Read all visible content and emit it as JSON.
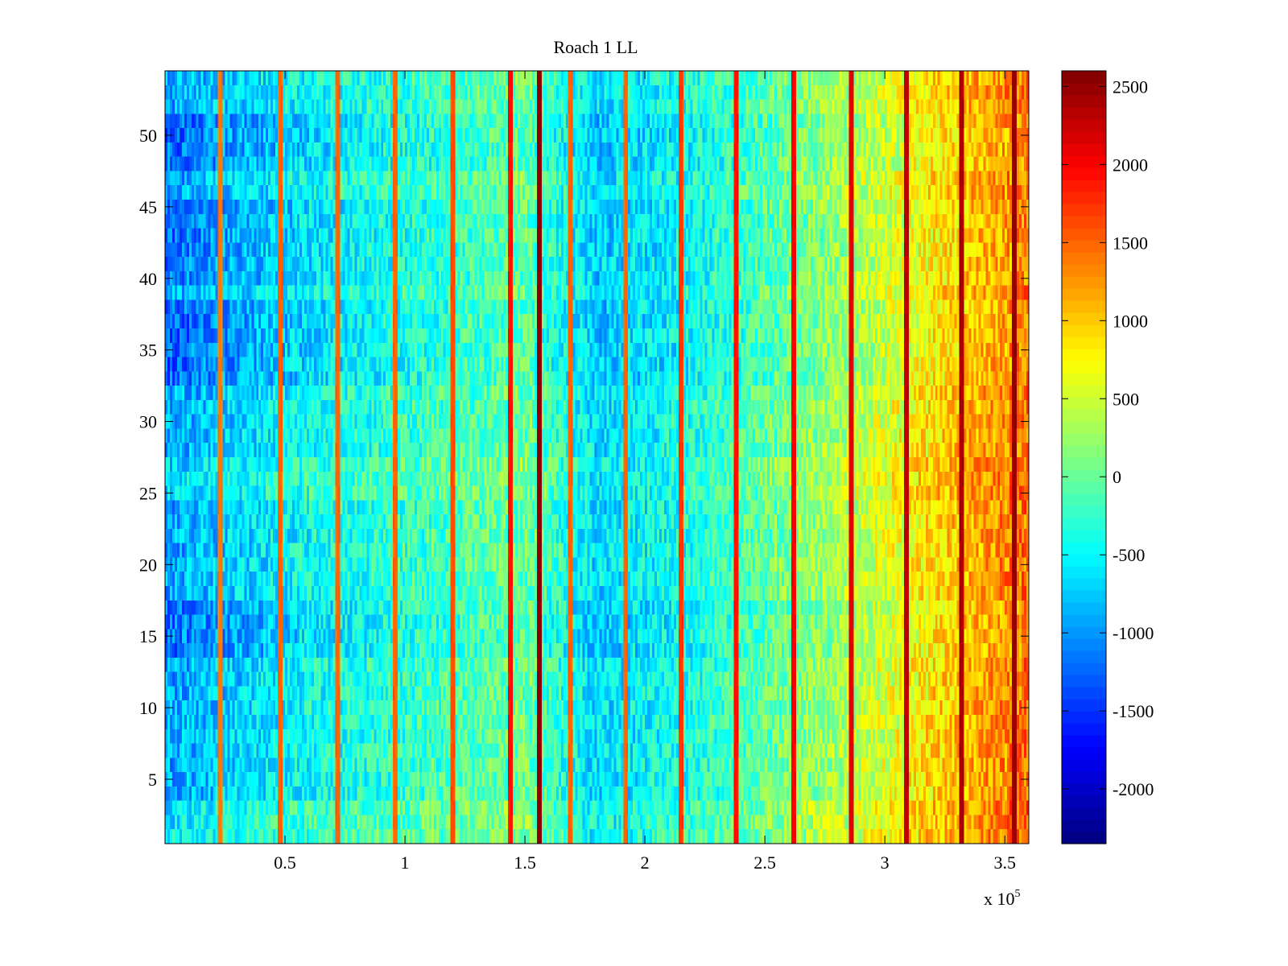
{
  "chart_data": {
    "type": "heatmap",
    "title": "Roach 1 LL",
    "xlabel": "",
    "ylabel": "",
    "x_multiplier_label": "x 10",
    "x_multiplier_exponent": "5",
    "xlim": [
      0,
      3.6
    ],
    "ylim": [
      0.5,
      54.5
    ],
    "x_ticks": [
      0.5,
      1,
      1.5,
      2,
      2.5,
      3,
      3.5
    ],
    "x_tick_labels": [
      "0.5",
      "1",
      "1.5",
      "2",
      "2.5",
      "3",
      "3.5"
    ],
    "y_ticks": [
      5,
      10,
      15,
      20,
      25,
      30,
      35,
      40,
      45,
      50
    ],
    "y_tick_labels": [
      "5",
      "10",
      "15",
      "20",
      "25",
      "30",
      "35",
      "40",
      "45",
      "50"
    ],
    "rows": 54,
    "colorbar": {
      "colormap": "jet",
      "clim": [
        -2350,
        2600
      ],
      "ticks": [
        2500,
        2000,
        1500,
        1000,
        500,
        0,
        -500,
        -1000,
        -1500,
        -2000
      ],
      "tick_labels": [
        "2500",
        "2000",
        "1500",
        "1000",
        "500",
        "0",
        "-500",
        "-1000",
        "-1500",
        "-2000"
      ]
    },
    "trend_profile": {
      "x": [
        0,
        0.3,
        0.6,
        1.0,
        1.3,
        1.5,
        1.6,
        1.8,
        2.1,
        2.4,
        2.7,
        3.0,
        3.2,
        3.45,
        3.6
      ],
      "value": [
        -950,
        -700,
        -450,
        -250,
        -100,
        50,
        -200,
        -650,
        -450,
        -150,
        200,
        550,
        900,
        1250,
        1450
      ]
    },
    "bright_lines_x": [
      0.23,
      0.48,
      0.72,
      0.96,
      1.2,
      1.44,
      1.56,
      1.69,
      1.92,
      2.15,
      2.38,
      2.62,
      2.86,
      3.09,
      3.32,
      3.54
    ],
    "bright_line_values": [
      1400,
      1500,
      1500,
      1500,
      1600,
      1900,
      2550,
      1500,
      1500,
      1700,
      1900,
      2000,
      2100,
      2300,
      2400,
      2500
    ],
    "row_effects": [
      {
        "rows": [
          1,
          3
        ],
        "offset": 350
      },
      {
        "rows": [
          14,
          17
        ],
        "offset": -250
      },
      {
        "rows": [
          25,
          27
        ],
        "offset": 250
      },
      {
        "rows": [
          33,
          38
        ],
        "offset": -300
      },
      {
        "rows": [
          40,
          45
        ],
        "offset": -250
      },
      {
        "rows": [
          48,
          51
        ],
        "offset": -300
      }
    ],
    "noise_amplitude": 420
  }
}
